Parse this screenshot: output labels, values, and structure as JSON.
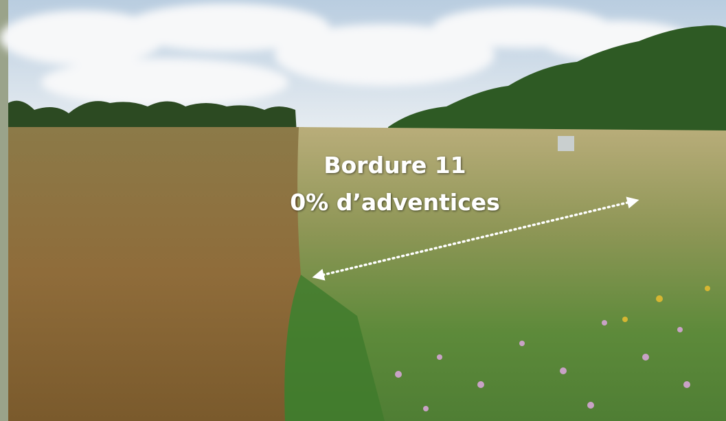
{
  "caption": {
    "title": "Bordure 11",
    "subtitle": "0% d’adventices"
  }
}
